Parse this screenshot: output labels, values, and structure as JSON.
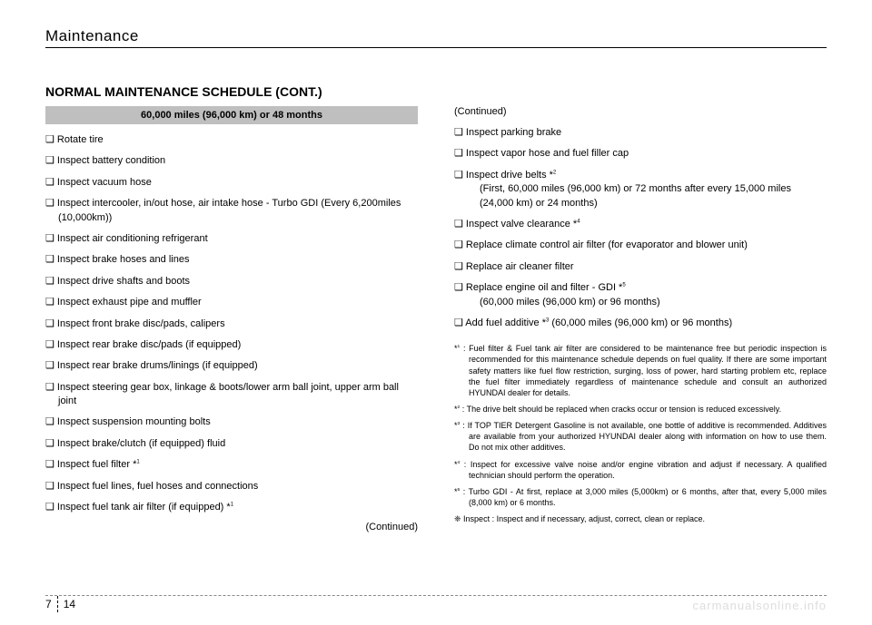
{
  "chapterTitle": "Maintenance",
  "sectionTitle": "NORMAL MAINTENANCE SCHEDULE (CONT.)",
  "scheduleHeader": "60,000 miles (96,000 km) or 48 months",
  "leftItems": [
    {
      "text": "❑ Rotate tire"
    },
    {
      "text": "❑ Inspect battery condition"
    },
    {
      "text": "❑ Inspect vacuum hose"
    },
    {
      "text": "❑ Inspect intercooler, in/out hose, air intake hose - Turbo GDI (Every 6,200miles (10,000km))"
    },
    {
      "text": "❑ Inspect air conditioning refrigerant"
    },
    {
      "text": "❑ Inspect brake hoses and lines"
    },
    {
      "text": "❑ Inspect drive shafts and boots"
    },
    {
      "text": "❑ Inspect exhaust pipe and muffler"
    },
    {
      "text": "❑ Inspect front brake disc/pads, calipers"
    },
    {
      "text": "❑ Inspect rear brake disc/pads (if equipped)"
    },
    {
      "text": "❑ Inspect rear brake drums/linings (if equipped)"
    },
    {
      "text": "❑ Inspect steering gear box, linkage & boots/lower arm ball joint, upper arm ball joint"
    },
    {
      "text": "❑ Inspect suspension mounting bolts"
    },
    {
      "text": "❑ Inspect brake/clutch (if equipped) fluid"
    },
    {
      "text": "❑ Inspect fuel filter *",
      "sup": "1"
    },
    {
      "text": "❑ Inspect fuel lines, fuel hoses and connections"
    },
    {
      "text": "❑ Inspect fuel tank air filter (if equipped) *",
      "sup": "1"
    }
  ],
  "continuedLeft": "(Continued)",
  "continuedRight": "(Continued)",
  "rightItems": [
    {
      "text": "❑ Inspect parking brake"
    },
    {
      "text": "❑ Inspect vapor hose and fuel filler cap"
    },
    {
      "text": "❑ Inspect drive belts *",
      "sup": "2",
      "sub": "(First, 60,000 miles (96,000 km) or 72 months  after every 15,000 miles (24,000 km) or 24 months)"
    },
    {
      "text": "❑ Inspect valve clearance *",
      "sup": "4"
    },
    {
      "text": "❑ Replace climate control air filter (for evaporator and blower unit)"
    },
    {
      "text": "❑ Replace air cleaner filter"
    },
    {
      "text": "❑ Replace engine oil and filter - GDI *",
      "sup": "5",
      "sub": "(60,000 miles (96,000 km) or 96 months)"
    },
    {
      "text": "❑ Add fuel additive *",
      "sup": "3",
      "tail": " (60,000 miles (96,000 km) or 96 months)"
    }
  ],
  "footnotes": [
    {
      "mark": "*",
      "sup": "1",
      "text": ": Fuel filter & Fuel tank air filter are considered to be maintenance free but periodic inspection is recommended for this maintenance schedule depends on fuel quality. If there are some important safety matters  like fuel flow restriction, surging, loss of power, hard starting problem etc, replace the fuel filter immediately regardless  of maintenance schedule and consult an authorized HYUNDAI dealer for details."
    },
    {
      "mark": "*",
      "sup": "2",
      "text": ": The drive belt should be replaced when cracks occur or tension is reduced excessively."
    },
    {
      "mark": "*",
      "sup": "3",
      "text": ": If TOP TIER Detergent Gasoline is not available, one bottle of additive is recommended. Additives are available from your authorized HYUNDAI dealer along with information on how to use them. Do not mix other additives."
    },
    {
      "mark": "*",
      "sup": "4",
      "text": ": Inspect for excessive valve noise and/or engine vibration and adjust if necessary. A qualified technician should perform the operation."
    },
    {
      "mark": "*",
      "sup": "5",
      "text": ": Turbo GDI - At first, replace at 3,000 miles (5,000km) or 6 months, after that, every 5,000 miles (8,000 km) or 6 months."
    },
    {
      "mark": "❈",
      "text": "Inspect : Inspect and if necessary, adjust, correct, clean or replace."
    }
  ],
  "pageLeft": "7",
  "pageRight": "14",
  "watermark": "carmanualsonline.info"
}
